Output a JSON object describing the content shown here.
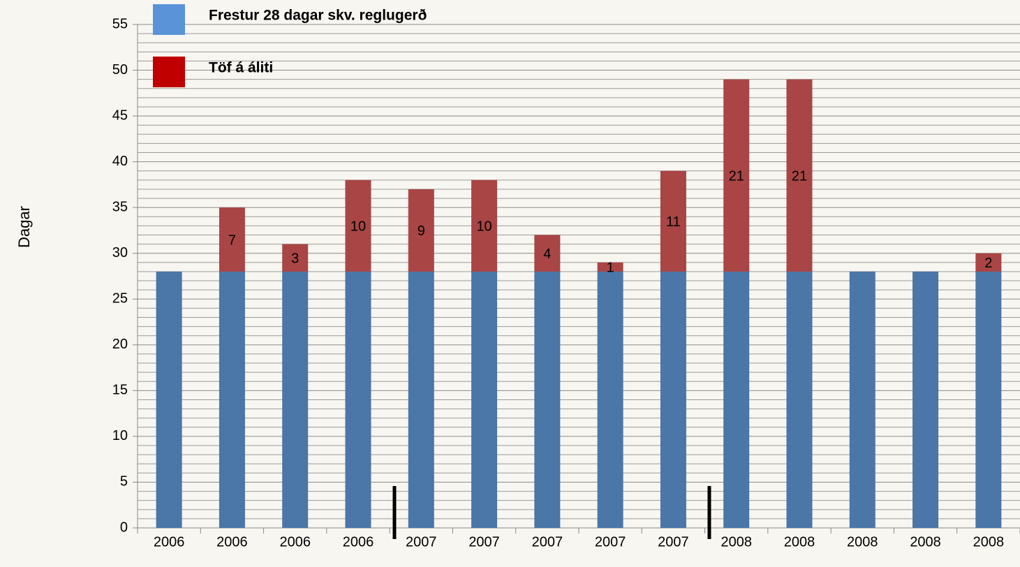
{
  "chart_data": {
    "type": "stacked_bar",
    "y_label": "Dagar",
    "categories": [
      "2006",
      "2006",
      "2006",
      "2006",
      "2007",
      "2007",
      "2007",
      "2007",
      "2007",
      "2008",
      "2008",
      "2008",
      "2008",
      "2008"
    ],
    "series": [
      {
        "name": "Frestur 28 dagar skv. reglugerð",
        "color": "#4a76a8",
        "legend_color": "#5b93d9",
        "values": [
          28,
          28,
          28,
          28,
          28,
          28,
          28,
          28,
          28,
          28,
          28,
          28,
          28,
          28
        ]
      },
      {
        "name": "Töf á áliti",
        "color": "#a94545",
        "legend_color": "#c00000",
        "values": [
          null,
          7,
          3,
          10,
          9,
          10,
          4,
          1,
          11,
          21,
          21,
          null,
          null,
          2
        ],
        "show_labels": true
      }
    ],
    "ylim": [
      0,
      55
    ],
    "yticks": [
      0,
      5,
      10,
      15,
      20,
      25,
      30,
      35,
      40,
      45,
      50,
      55
    ],
    "grid": true
  }
}
